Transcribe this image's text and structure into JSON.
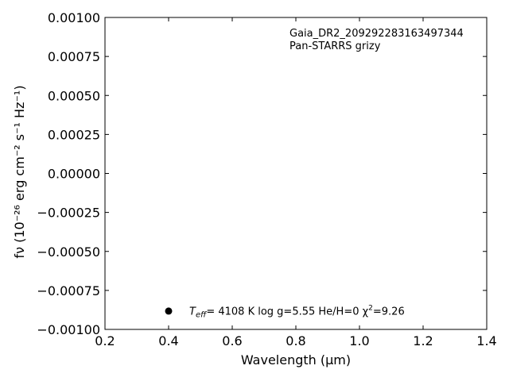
{
  "chart_data": {
    "type": "scatter",
    "title": "",
    "xlabel": "Wavelength (μm)",
    "ylabel": "fν (10⁻²⁶ erg cm⁻² s⁻¹ Hz⁻¹)",
    "xlim": [
      0.2,
      1.4
    ],
    "ylim": [
      -0.001,
      0.001
    ],
    "x_ticks": [
      0.2,
      0.4,
      0.6,
      0.8,
      1.0,
      1.2,
      1.4
    ],
    "x_tick_labels": [
      "0.2",
      "0.4",
      "0.6",
      "0.8",
      "1.0",
      "1.2",
      "1.4"
    ],
    "y_ticks": [
      0.001,
      0.00075,
      0.0005,
      0.00025,
      0,
      -0.00025,
      -0.0005,
      -0.00075,
      -0.001
    ],
    "y_tick_labels": [
      "0.00100",
      "0.00075",
      "0.00050",
      "0.00025",
      "0.00000",
      "−0.00025",
      "−0.00050",
      "−0.00075",
      "−0.00100"
    ],
    "grid": false,
    "legend": {
      "placement": "lower-center",
      "marker_color": "#000000",
      "marker_x": 0.4,
      "marker_y": -0.00088,
      "teff_symbol": "T",
      "teff_subscript": "eff",
      "teff_value": "=  4108 K  log g=5.55  He/H=0  χ",
      "chi_exp": "2",
      "chi_value": "=9.26"
    },
    "annotations": {
      "source_id": "Gaia_DR2_209292283163497344",
      "photometry": "Pan-STARRS grizy"
    },
    "series": []
  }
}
